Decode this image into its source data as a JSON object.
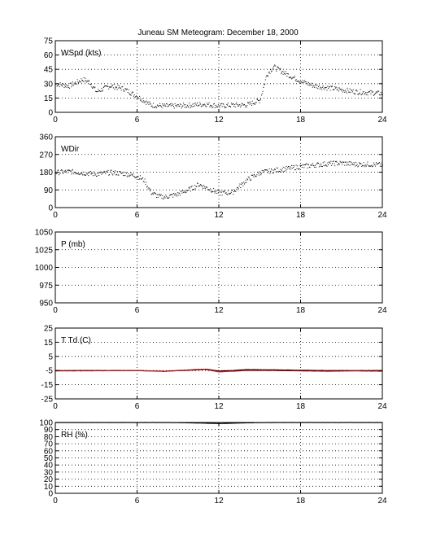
{
  "figure": {
    "title": "Juneau SM Meteogram:   December 18, 2000"
  },
  "chart_data": [
    {
      "type": "scatter",
      "label": "WSpd (kts)",
      "xlim": [
        0,
        24
      ],
      "xticks": [
        0,
        6,
        12,
        18,
        24
      ],
      "ylim": [
        0,
        75
      ],
      "yticks": [
        0,
        15,
        30,
        45,
        60,
        75
      ],
      "grid": true,
      "series": [
        {
          "color": "#000000",
          "x": [
            0,
            1,
            2,
            2.5,
            3,
            4,
            5,
            6,
            7,
            8,
            9,
            10,
            11,
            12,
            13,
            14,
            15,
            15.5,
            16,
            17,
            18,
            19,
            20,
            21,
            22,
            23,
            24
          ],
          "y": [
            30,
            28,
            35,
            32,
            22,
            28,
            25,
            17,
            8,
            7,
            7,
            8,
            9,
            7,
            8,
            8,
            13,
            40,
            48,
            40,
            33,
            28,
            26,
            24,
            22,
            21,
            20
          ]
        }
      ]
    },
    {
      "type": "scatter",
      "label": "WDir",
      "xlim": [
        0,
        24
      ],
      "xticks": [
        0,
        6,
        12,
        18,
        24
      ],
      "ylim": [
        0,
        360
      ],
      "yticks": [
        0,
        90,
        180,
        270,
        360
      ],
      "grid": true,
      "series": [
        {
          "color": "#000000",
          "x": [
            0,
            1,
            2,
            3,
            4,
            5,
            6,
            6.5,
            7,
            7.5,
            8,
            9,
            10,
            10.5,
            11,
            12,
            13,
            14,
            15,
            16,
            17,
            18,
            19,
            20,
            21,
            22,
            23,
            24
          ],
          "y": [
            180,
            185,
            178,
            172,
            180,
            175,
            162,
            140,
            80,
            60,
            55,
            70,
            100,
            120,
            105,
            75,
            80,
            140,
            180,
            190,
            200,
            210,
            218,
            225,
            228,
            222,
            222,
            218
          ]
        }
      ]
    },
    {
      "type": "line",
      "label": "P (mb)",
      "xlim": [
        0,
        24
      ],
      "xticks": [
        0,
        6,
        12,
        18,
        24
      ],
      "ylim": [
        950,
        1050
      ],
      "yticks": [
        950,
        975,
        1000,
        1025,
        1050
      ],
      "grid": true,
      "series": []
    },
    {
      "type": "line",
      "label": "T Td (C)",
      "xlim": [
        0,
        24
      ],
      "xticks": [
        0,
        6,
        12,
        18,
        24
      ],
      "ylim": [
        -25,
        25
      ],
      "yticks": [
        -25,
        -15,
        -5,
        5,
        15,
        25
      ],
      "grid": true,
      "series": [
        {
          "color": "#000000",
          "x": [
            0,
            3,
            6,
            8,
            10,
            11,
            12,
            13,
            14,
            16,
            18,
            20,
            22,
            24
          ],
          "y": [
            -5,
            -5,
            -5,
            -5.5,
            -4.5,
            -4,
            -5.3,
            -5,
            -4.3,
            -4.5,
            -4.8,
            -5,
            -5,
            -5
          ]
        },
        {
          "color": "#dd0000",
          "x": [
            0,
            3,
            6,
            8,
            10,
            11,
            12,
            13,
            14,
            16,
            18,
            20,
            22,
            24
          ],
          "y": [
            -5.3,
            -5.2,
            -5,
            -5.5,
            -4.8,
            -4.2,
            -6,
            -5.5,
            -5,
            -5,
            -5.3,
            -5.5,
            -5.3,
            -5.5
          ]
        }
      ]
    },
    {
      "type": "line",
      "label": "RH (%)",
      "xlim": [
        0,
        24
      ],
      "xticks": [
        0,
        6,
        12,
        18,
        24
      ],
      "ylim": [
        0,
        100
      ],
      "yticks": [
        0,
        10,
        20,
        30,
        40,
        50,
        60,
        70,
        80,
        90,
        100
      ],
      "grid": true,
      "series": [
        {
          "color": "#000000",
          "x": [
            0,
            4,
            8,
            10,
            11,
            12,
            13,
            14,
            16,
            18,
            20,
            24
          ],
          "y": [
            100,
            100,
            100,
            99.5,
            99,
            98.5,
            99,
            99.5,
            100,
            100,
            100,
            100
          ]
        }
      ]
    }
  ]
}
